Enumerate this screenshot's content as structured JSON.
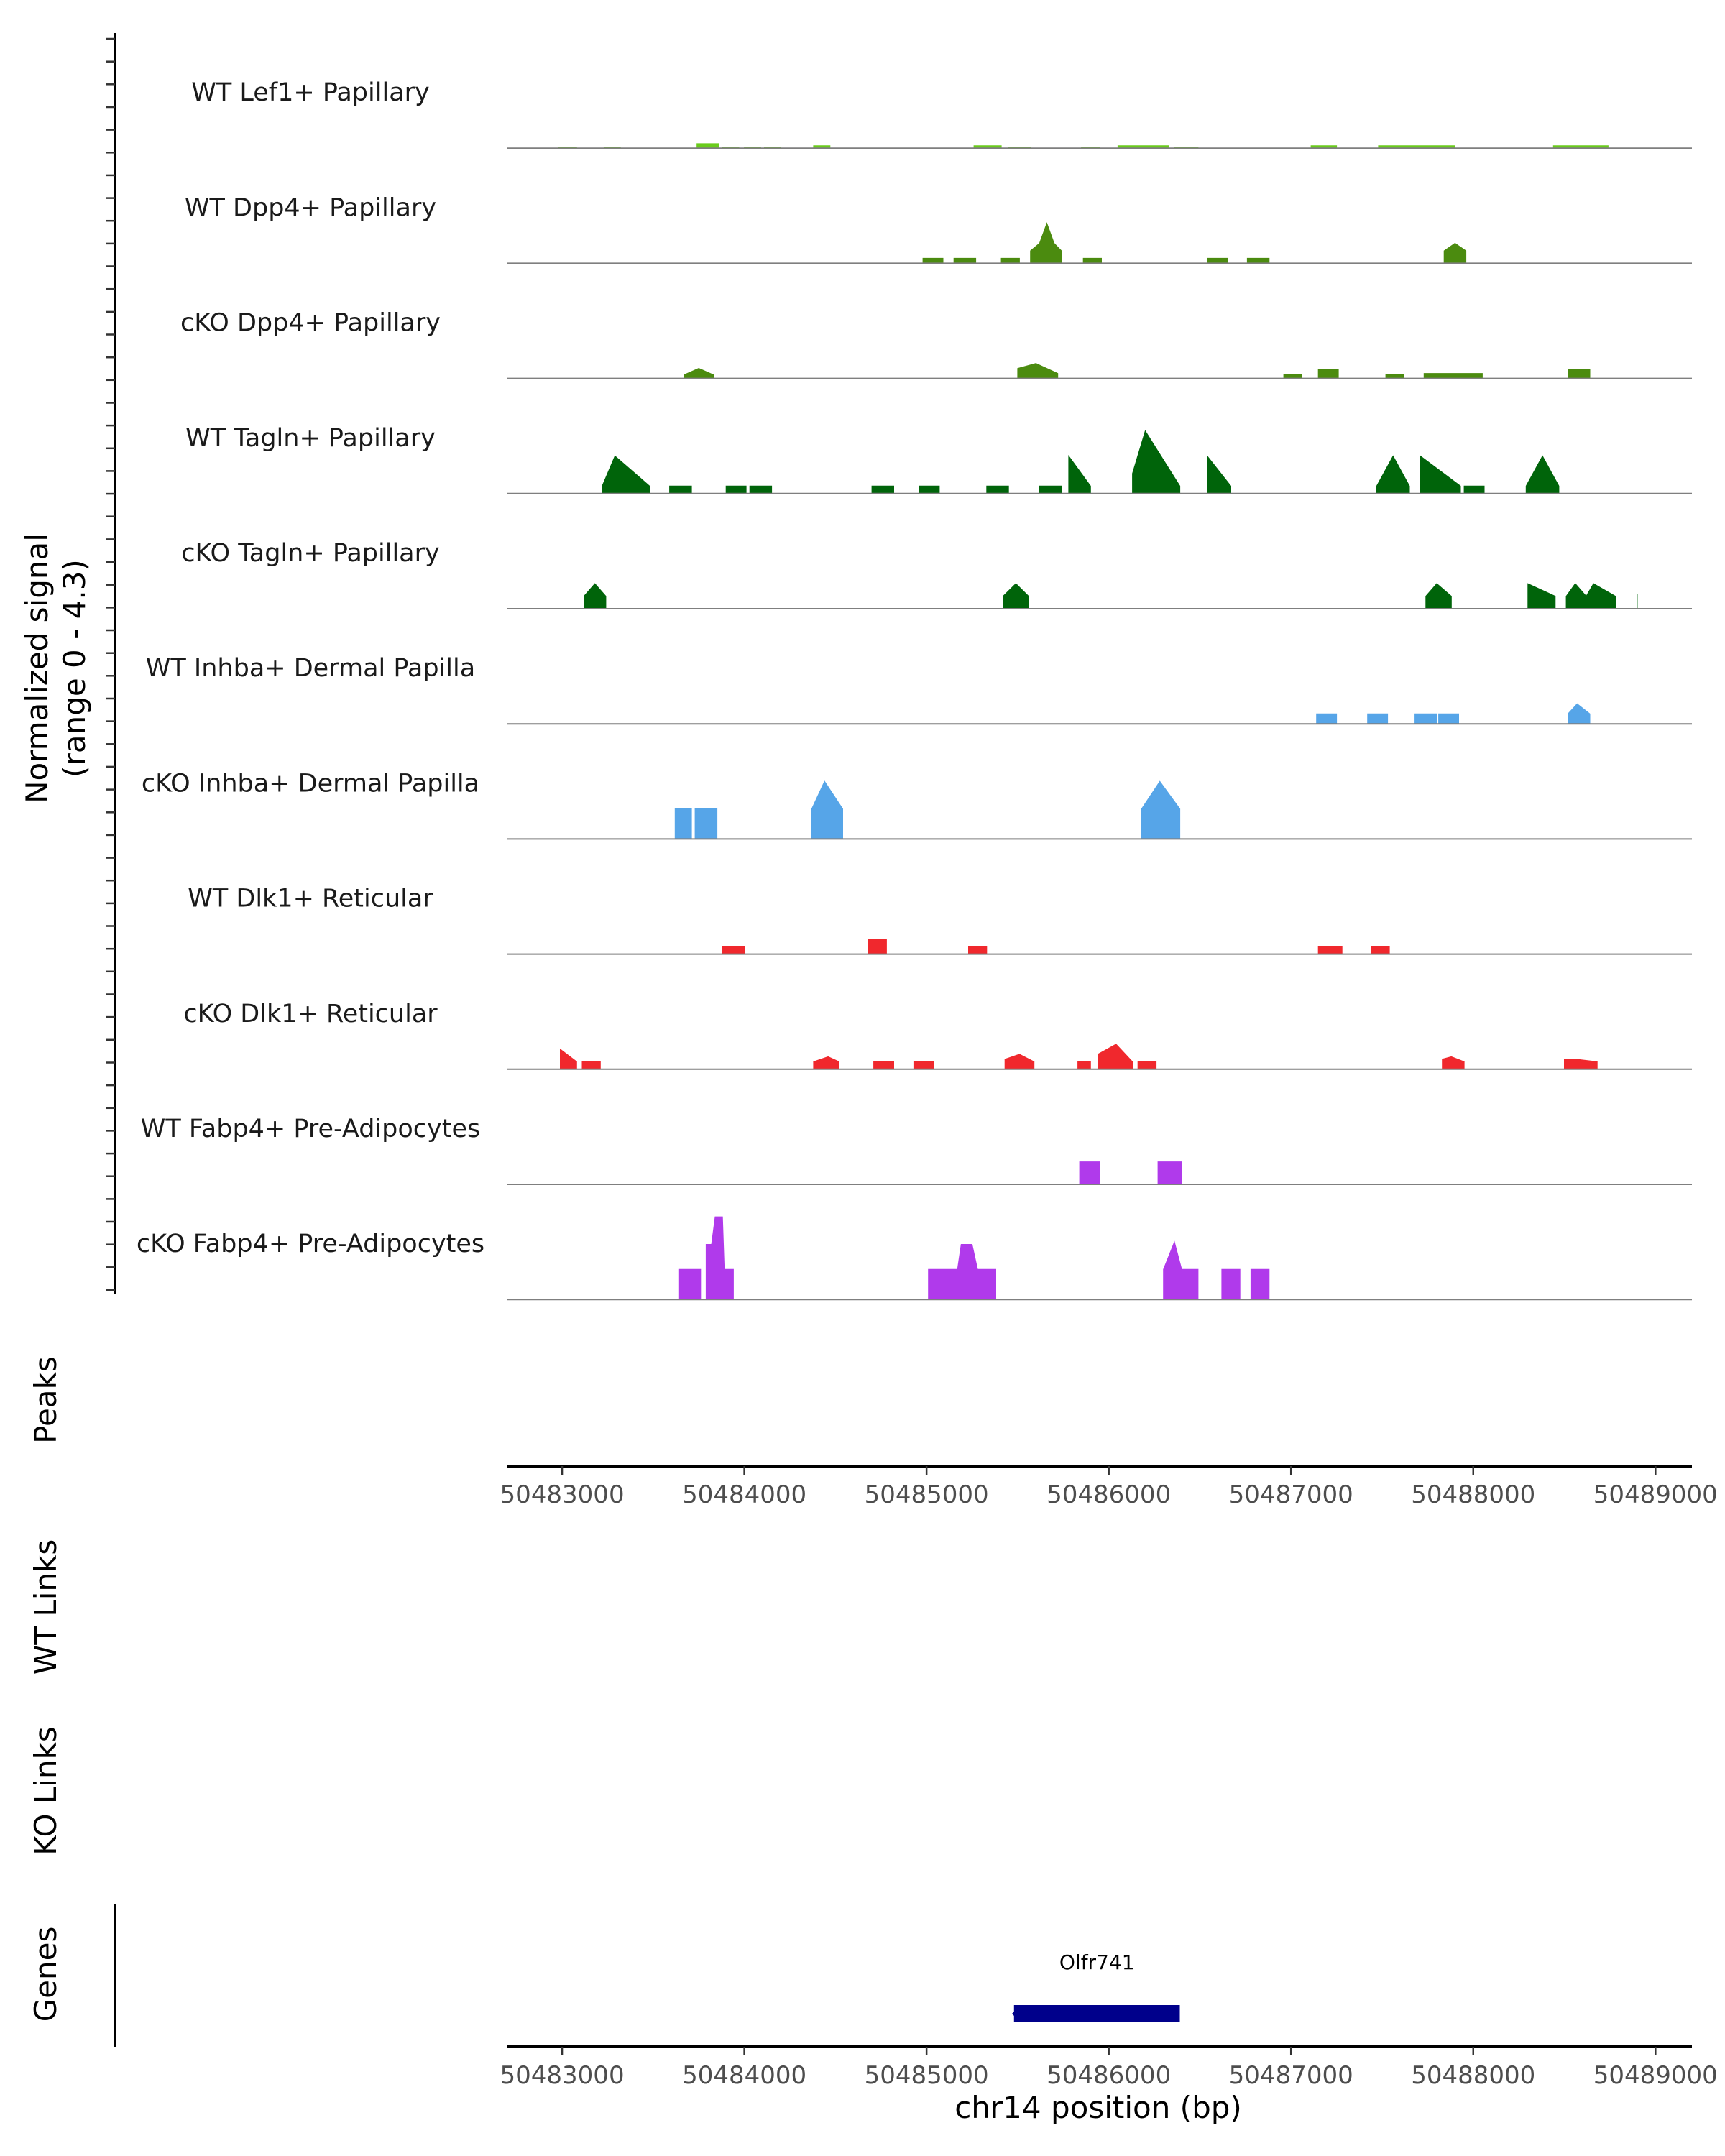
{
  "chart_data": {
    "type": "area",
    "chromosome": "chr14",
    "xlabel": "chr14 position (bp)",
    "xlim": [
      50482700,
      50489200
    ],
    "x_ticks": [
      50483000,
      50484000,
      50485000,
      50486000,
      50487000,
      50488000,
      50489000
    ],
    "x_tick_labels": [
      "50483000",
      "50484000",
      "50485000",
      "50486000",
      "50487000",
      "50488000",
      "50489000"
    ],
    "ylabel": "Normalized signal\n(range 0 - 4.3)",
    "ylabel_lines": [
      "Normalized signal",
      "(range 0 - 4.3)"
    ],
    "ylim": [
      0,
      4.3
    ],
    "tracks": [
      {
        "name": "WT Lef1+ Papillary",
        "color": "#6ACC1C",
        "segments": [
          [
            [
              50482980,
              0.05
            ],
            [
              50483080,
              0.05
            ]
          ],
          [
            [
              50483230,
              0.05
            ],
            [
              50483320,
              0.05
            ]
          ],
          [
            [
              50483740,
              0.18
            ],
            [
              50483860,
              0.18
            ]
          ],
          [
            [
              50483880,
              0.05
            ],
            [
              50483970,
              0.05
            ]
          ],
          [
            [
              50484000,
              0.05
            ],
            [
              50484090,
              0.05
            ]
          ],
          [
            [
              50484110,
              0.05
            ],
            [
              50484200,
              0.05
            ]
          ],
          [
            [
              50484380,
              0.1
            ],
            [
              50484470,
              0.1
            ]
          ],
          [
            [
              50485260,
              0.1
            ],
            [
              50485410,
              0.1
            ]
          ],
          [
            [
              50485450,
              0.05
            ],
            [
              50485570,
              0.05
            ]
          ],
          [
            [
              50485850,
              0.05
            ],
            [
              50485950,
              0.05
            ]
          ],
          [
            [
              50486050,
              0.1
            ],
            [
              50486330,
              0.1
            ]
          ],
          [
            [
              50486360,
              0.05
            ],
            [
              50486490,
              0.05
            ]
          ],
          [
            [
              50487110,
              0.1
            ],
            [
              50487250,
              0.1
            ]
          ],
          [
            [
              50487480,
              0.1
            ],
            [
              50487900,
              0.1
            ]
          ],
          [
            [
              50488440,
              0.1
            ],
            [
              50488740,
              0.1
            ]
          ]
        ]
      },
      {
        "name": "WT Dpp4+ Papillary",
        "color": "#4B8B0F",
        "segments": [
          [
            [
              50484980,
              0.2
            ],
            [
              50485090,
              0.2
            ]
          ],
          [
            [
              50485150,
              0.2
            ],
            [
              50485270,
              0.2
            ]
          ],
          [
            [
              50485410,
              0.2
            ],
            [
              50485510,
              0.2
            ]
          ],
          [
            [
              50485570,
              0.5
            ],
            [
              50485620,
              0.8
            ],
            [
              50485660,
              1.6
            ],
            [
              50485700,
              0.8
            ],
            [
              50485740,
              0.5
            ]
          ],
          [
            [
              50485860,
              0.2
            ],
            [
              50485960,
              0.2
            ]
          ],
          [
            [
              50486540,
              0.2
            ],
            [
              50486650,
              0.2
            ]
          ],
          [
            [
              50486760,
              0.2
            ],
            [
              50486880,
              0.2
            ]
          ],
          [
            [
              50487840,
              0.5
            ],
            [
              50487900,
              0.8
            ],
            [
              50487960,
              0.5
            ]
          ]
        ]
      },
      {
        "name": "cKO Dpp4+ Papillary",
        "color": "#4B8B0F",
        "segments": [
          [
            [
              50483670,
              0.15
            ],
            [
              50483750,
              0.4
            ],
            [
              50483830,
              0.15
            ]
          ],
          [
            [
              50485500,
              0.4
            ],
            [
              50485600,
              0.6
            ],
            [
              50485720,
              0.2
            ]
          ],
          [
            [
              50486960,
              0.15
            ],
            [
              50487060,
              0.15
            ]
          ],
          [
            [
              50487150,
              0.35
            ],
            [
              50487260,
              0.35
            ]
          ],
          [
            [
              50487520,
              0.15
            ],
            [
              50487620,
              0.15
            ]
          ],
          [
            [
              50487730,
              0.2
            ],
            [
              50488050,
              0.2
            ]
          ],
          [
            [
              50488520,
              0.35
            ],
            [
              50488640,
              0.35
            ]
          ]
        ]
      },
      {
        "name": "WT Tagln+ Papillary",
        "color": "#00640A",
        "segments": [
          [
            [
              50483220,
              0.3
            ],
            [
              50483290,
              1.5
            ],
            [
              50483480,
              0.3
            ]
          ],
          [
            [
              50483590,
              0.3
            ],
            [
              50483710,
              0.3
            ]
          ],
          [
            [
              50483900,
              0.3
            ],
            [
              50484010,
              0.3
            ]
          ],
          [
            [
              50484030,
              0.3
            ],
            [
              50484150,
              0.3
            ]
          ],
          [
            [
              50484700,
              0.3
            ],
            [
              50484820,
              0.3
            ]
          ],
          [
            [
              50484960,
              0.3
            ],
            [
              50485070,
              0.3
            ]
          ],
          [
            [
              50485330,
              0.3
            ],
            [
              50485450,
              0.3
            ]
          ],
          [
            [
              50485620,
              0.3
            ],
            [
              50485740,
              0.3
            ]
          ],
          [
            [
              50485780,
              1.5
            ],
            [
              50485900,
              0.3
            ]
          ],
          [
            [
              50486130,
              0.8
            ],
            [
              50486200,
              2.5
            ],
            [
              50486390,
              0.3
            ]
          ],
          [
            [
              50486540,
              1.5
            ],
            [
              50486670,
              0.3
            ]
          ],
          [
            [
              50487470,
              0.3
            ],
            [
              50487560,
              1.5
            ],
            [
              50487650,
              0.3
            ]
          ],
          [
            [
              50487710,
              1.5
            ],
            [
              50487930,
              0.3
            ]
          ],
          [
            [
              50487950,
              0.3
            ],
            [
              50488060,
              0.3
            ]
          ],
          [
            [
              50488290,
              0.3
            ],
            [
              50488380,
              1.5
            ],
            [
              50488470,
              0.3
            ]
          ]
        ]
      },
      {
        "name": "cKO Tagln+ Papillary",
        "color": "#00640A",
        "segments": [
          [
            [
              50483120,
              0.5
            ],
            [
              50483180,
              1.0
            ],
            [
              50483240,
              0.5
            ]
          ],
          [
            [
              50485420,
              0.5
            ],
            [
              50485490,
              1.0
            ],
            [
              50485560,
              0.5
            ]
          ],
          [
            [
              50487740,
              0.5
            ],
            [
              50487800,
              1.0
            ],
            [
              50487880,
              0.5
            ]
          ],
          [
            [
              50488300,
              1.0
            ],
            [
              50488450,
              0.5
            ]
          ],
          [
            [
              50488510,
              0.5
            ],
            [
              50488560,
              1.0
            ],
            [
              50488620,
              0.5
            ],
            [
              50488660,
              1.0
            ],
            [
              50488780,
              0.5
            ]
          ],
          [
            [
              50488900,
              0.6
            ]
          ]
        ]
      },
      {
        "name": "WT Inhba+ Dermal Papilla",
        "color": "#56A5E8",
        "segments": [
          [
            [
              50487140,
              0.4
            ],
            [
              50487250,
              0.4
            ]
          ],
          [
            [
              50487420,
              0.4
            ],
            [
              50487530,
              0.4
            ]
          ],
          [
            [
              50487680,
              0.4
            ],
            [
              50487800,
              0.4
            ]
          ],
          [
            [
              50487810,
              0.4
            ],
            [
              50487920,
              0.4
            ]
          ],
          [
            [
              50488520,
              0.4
            ],
            [
              50488570,
              0.8
            ],
            [
              50488640,
              0.4
            ]
          ]
        ]
      },
      {
        "name": "cKO Inhba+ Dermal Papilla",
        "color": "#56A5E8",
        "segments": [
          [
            [
              50483620,
              1.2
            ],
            [
              50483710,
              1.2
            ]
          ],
          [
            [
              50483730,
              1.2
            ],
            [
              50483850,
              1.2
            ]
          ],
          [
            [
              50484370,
              1.2
            ],
            [
              50484440,
              2.3
            ],
            [
              50484540,
              1.2
            ]
          ],
          [
            [
              50486180,
              1.2
            ],
            [
              50486280,
              2.3
            ],
            [
              50486390,
              1.2
            ]
          ]
        ]
      },
      {
        "name": "WT Dlk1+ Reticular",
        "color": "#F0282D",
        "segments": [
          [
            [
              50483880,
              0.3
            ],
            [
              50484000,
              0.3
            ]
          ],
          [
            [
              50484680,
              0.6
            ],
            [
              50484780,
              0.6
            ]
          ],
          [
            [
              50485230,
              0.3
            ],
            [
              50485330,
              0.3
            ]
          ],
          [
            [
              50487150,
              0.3
            ],
            [
              50487280,
              0.3
            ]
          ],
          [
            [
              50487440,
              0.3
            ],
            [
              50487540,
              0.3
            ]
          ]
        ]
      },
      {
        "name": "cKO Dlk1+ Reticular",
        "color": "#F0282D",
        "segments": [
          [
            [
              50482990,
              0.8
            ],
            [
              50483080,
              0.3
            ]
          ],
          [
            [
              50483110,
              0.3
            ],
            [
              50483210,
              0.3
            ]
          ],
          [
            [
              50484380,
              0.3
            ],
            [
              50484460,
              0.5
            ],
            [
              50484520,
              0.3
            ]
          ],
          [
            [
              50484710,
              0.3
            ],
            [
              50484820,
              0.3
            ]
          ],
          [
            [
              50484930,
              0.3
            ],
            [
              50485040,
              0.3
            ]
          ],
          [
            [
              50485430,
              0.4
            ],
            [
              50485510,
              0.6
            ],
            [
              50485590,
              0.3
            ]
          ],
          [
            [
              50485830,
              0.3
            ],
            [
              50485900,
              0.3
            ]
          ],
          [
            [
              50485940,
              0.6
            ],
            [
              50486040,
              1.0
            ],
            [
              50486130,
              0.3
            ]
          ],
          [
            [
              50486160,
              0.3
            ],
            [
              50486260,
              0.3
            ]
          ],
          [
            [
              50487830,
              0.4
            ],
            [
              50487880,
              0.5
            ],
            [
              50487950,
              0.3
            ]
          ],
          [
            [
              50488500,
              0.4
            ],
            [
              50488560,
              0.4
            ],
            [
              50488680,
              0.3
            ]
          ]
        ]
      },
      {
        "name": "WT Fabp4+ Pre-Adipocytes",
        "color": "#B03AEB",
        "segments": [
          [
            [
              50485840,
              0.9
            ],
            [
              50485950,
              0.9
            ]
          ],
          [
            [
              50486270,
              0.9
            ],
            [
              50486400,
              0.9
            ]
          ]
        ]
      },
      {
        "name": "cKO Fabp4+ Pre-Adipocytes",
        "color": "#B03AEB",
        "segments": [
          [
            [
              50483640,
              1.2
            ],
            [
              50483760,
              1.2
            ]
          ],
          [
            [
              50483790,
              2.2
            ],
            [
              50483820,
              2.2
            ],
            [
              50483840,
              3.3
            ],
            [
              50483880,
              3.3
            ],
            [
              50483890,
              1.2
            ],
            [
              50483940,
              1.2
            ]
          ],
          [
            [
              50485010,
              1.2
            ],
            [
              50485170,
              1.2
            ],
            [
              50485190,
              2.2
            ],
            [
              50485250,
              2.2
            ],
            [
              50485280,
              1.2
            ],
            [
              50485380,
              1.2
            ]
          ],
          [
            [
              50486300,
              1.2
            ],
            [
              50486360,
              2.3
            ],
            [
              50486400,
              1.2
            ],
            [
              50486490,
              1.2
            ]
          ],
          [
            [
              50486620,
              1.2
            ],
            [
              50486720,
              1.2
            ]
          ],
          [
            [
              50486780,
              1.2
            ],
            [
              50486880,
              1.2
            ]
          ]
        ]
      }
    ],
    "panels": [
      "Peaks",
      "WT Links",
      "KO Links",
      "Genes"
    ],
    "genes": [
      {
        "name": "Olfr741",
        "start": 50485480,
        "end": 50486390,
        "strand": "-",
        "color": "#00008B"
      }
    ]
  }
}
